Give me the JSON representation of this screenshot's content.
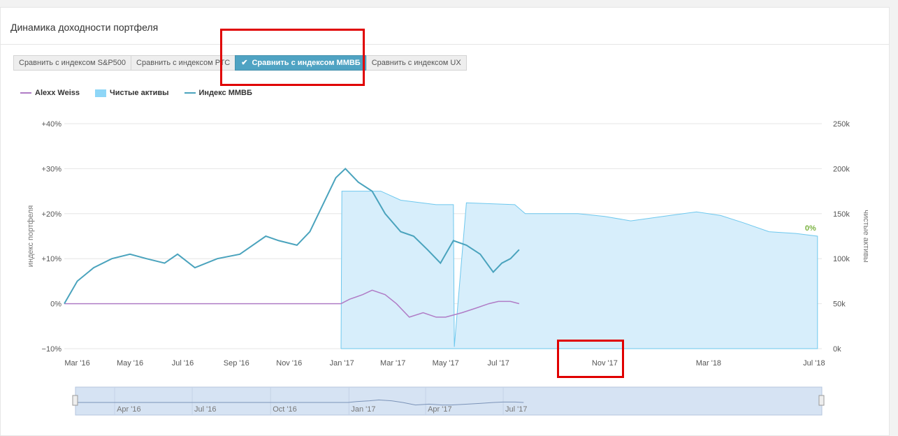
{
  "panel": {
    "title": "Динамика доходности портфеля"
  },
  "compare_buttons": [
    {
      "label": "Сравнить с индексом S&P500",
      "active": false
    },
    {
      "label": "Сравнить с индексом РТС",
      "active": false
    },
    {
      "label": "Сравнить с индексом ММВБ",
      "active": true
    },
    {
      "label": "Сравнить с индексом UX",
      "active": false
    }
  ],
  "icons": {
    "active_check": "check-icon"
  },
  "colors": {
    "portfolio": "#b07cc6",
    "net_assets_fill": "#d7eefb",
    "net_assets_stroke": "#6ec8ee",
    "index": "#4aa3bd",
    "annotation": "#e00000",
    "last_value": "#7cb342"
  },
  "chart_data": {
    "type": "line",
    "legend": [
      {
        "name": "Alexx Weiss",
        "kind": "line",
        "color": "#b07cc6"
      },
      {
        "name": "Чистые активы",
        "kind": "area",
        "color": "#7dd3f7"
      },
      {
        "name": "Индекс ММВБ",
        "kind": "line",
        "color": "#4aa3bd"
      }
    ],
    "y_left": {
      "label": "индекс портфеля",
      "min": -10,
      "max": 40,
      "ticks": [
        "+40%",
        "+30%",
        "+20%",
        "+10%",
        "0%",
        "−10%"
      ]
    },
    "y_right": {
      "label": "чистые активы",
      "min": 0,
      "max": 250000,
      "ticks": [
        "250k",
        "200k",
        "150k",
        "100k",
        "50k",
        "0k"
      ]
    },
    "x_range": [
      "2016-02-15",
      "2018-07-10"
    ],
    "x_ticks": [
      "Mar '16",
      "May '16",
      "Jul '16",
      "Sep '16",
      "Nov '16",
      "Jan '17",
      "Mar '17",
      "May '17",
      "Jul '17",
      "Nov '17",
      "Mar '18",
      "Jul '18"
    ],
    "series": [
      {
        "name": "Индекс ММВБ",
        "x": [
          "2016-02-15",
          "2016-03-01",
          "2016-03-20",
          "2016-04-10",
          "2016-05-01",
          "2016-05-20",
          "2016-06-10",
          "2016-06-25",
          "2016-07-15",
          "2016-08-10",
          "2016-09-05",
          "2016-10-05",
          "2016-10-20",
          "2016-11-10",
          "2016-11-25",
          "2016-12-10",
          "2016-12-25",
          "2017-01-05",
          "2017-01-20",
          "2017-02-05",
          "2017-02-20",
          "2017-03-10",
          "2017-03-25",
          "2017-04-10",
          "2017-04-25",
          "2017-05-10",
          "2017-05-25",
          "2017-06-10",
          "2017-06-25",
          "2017-07-05",
          "2017-07-15",
          "2017-07-25"
        ],
        "values": [
          0,
          5,
          8,
          10,
          11,
          10,
          9,
          11,
          8,
          10,
          11,
          15,
          14,
          13,
          16,
          22,
          28,
          30,
          27,
          25,
          20,
          16,
          15,
          12,
          9,
          14,
          13,
          11,
          7,
          9,
          10,
          12
        ]
      },
      {
        "name": "Alexx Weiss",
        "x": [
          "2016-02-15",
          "2016-12-31",
          "2017-01-10",
          "2017-01-25",
          "2017-02-05",
          "2017-02-20",
          "2017-03-05",
          "2017-03-20",
          "2017-04-05",
          "2017-04-20",
          "2017-05-01",
          "2017-05-20",
          "2017-06-05",
          "2017-06-20",
          "2017-07-01",
          "2017-07-15",
          "2017-07-25"
        ],
        "values": [
          0,
          0,
          1,
          2,
          3,
          2,
          0,
          -3,
          -2,
          -3,
          -3,
          -2,
          -1,
          0,
          0.5,
          0.5,
          0
        ]
      },
      {
        "name": "Чистые активы",
        "x": [
          "2016-12-31",
          "2017-01-01",
          "2017-02-15",
          "2017-03-10",
          "2017-04-20",
          "2017-05-10",
          "2017-05-11",
          "2017-05-25",
          "2017-07-20",
          "2017-08-01",
          "2017-09-01",
          "2017-10-01",
          "2017-11-01",
          "2017-12-01",
          "2018-01-15",
          "2018-02-15",
          "2018-03-15",
          "2018-04-10",
          "2018-05-10",
          "2018-06-10",
          "2018-07-05"
        ],
        "values": [
          0,
          175000,
          175000,
          165000,
          160000,
          160000,
          2000,
          162000,
          160000,
          150000,
          150000,
          150000,
          147000,
          142000,
          148000,
          152000,
          148000,
          140000,
          130000,
          128000,
          125000
        ]
      }
    ],
    "last_value_label": "0%",
    "navigator": {
      "x_ticks": [
        "Apr '16",
        "Jul '16",
        "Oct '16",
        "Jan '17",
        "Apr '17",
        "Jul '17"
      ]
    }
  }
}
